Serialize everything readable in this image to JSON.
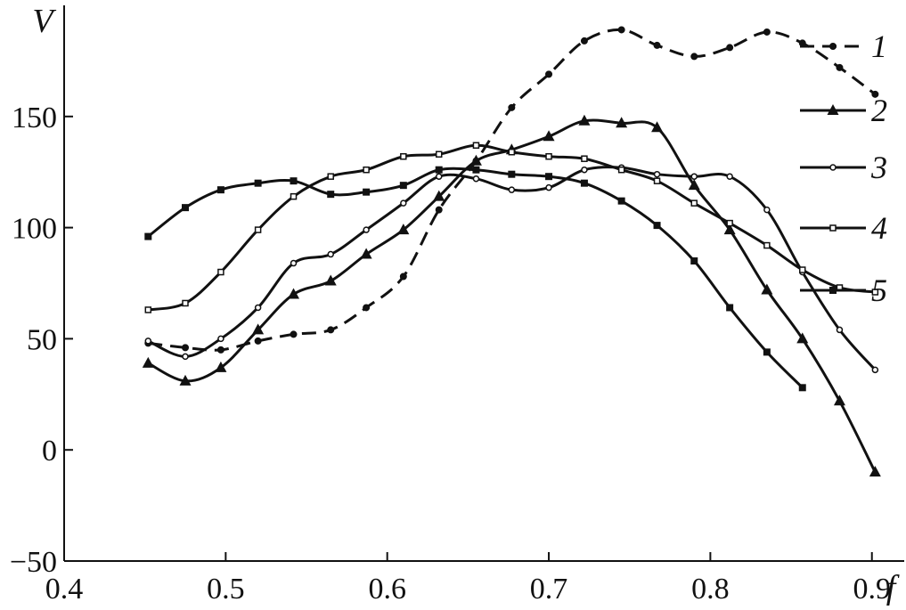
{
  "chart_data": {
    "type": "line",
    "xlabel": "f",
    "ylabel": "V",
    "xlim": [
      0.4,
      0.92
    ],
    "ylim": [
      -50,
      200
    ],
    "xticks": [
      0.4,
      0.5,
      0.6,
      0.7,
      0.8,
      0.9
    ],
    "xtick_labels": [
      "0.4",
      "0.5",
      "0.6",
      "0.7",
      "0.8",
      "0.9"
    ],
    "yticks": [
      -50,
      0,
      50,
      100,
      150
    ],
    "ytick_labels": [
      "−50",
      "0",
      "50",
      "100",
      "150"
    ],
    "grid": false,
    "legend_position": "top-right",
    "series": [
      {
        "name": "1",
        "line_style": "dashed",
        "marker": "filled-circle",
        "x": [
          0.452,
          0.475,
          0.497,
          0.52,
          0.542,
          0.565,
          0.587,
          0.61,
          0.632,
          0.655,
          0.677,
          0.7,
          0.722,
          0.745,
          0.767,
          0.79,
          0.812,
          0.835,
          0.857,
          0.88,
          0.902
        ],
        "y": [
          48,
          46,
          45,
          49,
          52,
          54,
          64,
          78,
          108,
          130,
          154,
          169,
          184,
          189,
          182,
          177,
          181,
          188,
          183,
          172,
          160
        ]
      },
      {
        "name": "2",
        "line_style": "solid",
        "marker": "filled-triangle",
        "x": [
          0.452,
          0.475,
          0.497,
          0.52,
          0.542,
          0.565,
          0.587,
          0.61,
          0.632,
          0.655,
          0.677,
          0.7,
          0.722,
          0.745,
          0.767,
          0.79,
          0.812,
          0.835,
          0.857,
          0.88,
          0.902
        ],
        "y": [
          39,
          31,
          37,
          54,
          70,
          76,
          88,
          99,
          114,
          130,
          135,
          141,
          148,
          147,
          145,
          119,
          99,
          72,
          50,
          22,
          -10
        ]
      },
      {
        "name": "3",
        "line_style": "solid",
        "marker": "open-circle",
        "x": [
          0.452,
          0.475,
          0.497,
          0.52,
          0.542,
          0.565,
          0.587,
          0.61,
          0.632,
          0.655,
          0.677,
          0.7,
          0.722,
          0.745,
          0.767,
          0.79,
          0.812,
          0.835,
          0.857,
          0.88,
          0.902
        ],
        "y": [
          49,
          42,
          50,
          64,
          84,
          88,
          99,
          111,
          123,
          122,
          117,
          118,
          126,
          127,
          124,
          123,
          123,
          108,
          80,
          54,
          36
        ]
      },
      {
        "name": "4",
        "line_style": "solid",
        "marker": "small-square",
        "x": [
          0.452,
          0.475,
          0.497,
          0.52,
          0.542,
          0.565,
          0.587,
          0.61,
          0.632,
          0.655,
          0.677,
          0.7,
          0.722,
          0.745,
          0.767,
          0.79,
          0.812,
          0.835,
          0.857,
          0.88,
          0.902
        ],
        "y": [
          63,
          66,
          80,
          99,
          114,
          123,
          126,
          132,
          133,
          137,
          134,
          132,
          131,
          126,
          121,
          111,
          102,
          92,
          81,
          73,
          71
        ]
      },
      {
        "name": "5",
        "line_style": "solid",
        "marker": "filled-square",
        "x": [
          0.452,
          0.475,
          0.497,
          0.52,
          0.542,
          0.565,
          0.587,
          0.61,
          0.632,
          0.655,
          0.677,
          0.7,
          0.722,
          0.745,
          0.767,
          0.79,
          0.812,
          0.835,
          0.857
        ],
        "y": [
          96,
          109,
          117,
          120,
          121,
          115,
          116,
          119,
          126,
          126,
          124,
          123,
          120,
          112,
          101,
          85,
          64,
          44,
          28
        ]
      }
    ]
  }
}
